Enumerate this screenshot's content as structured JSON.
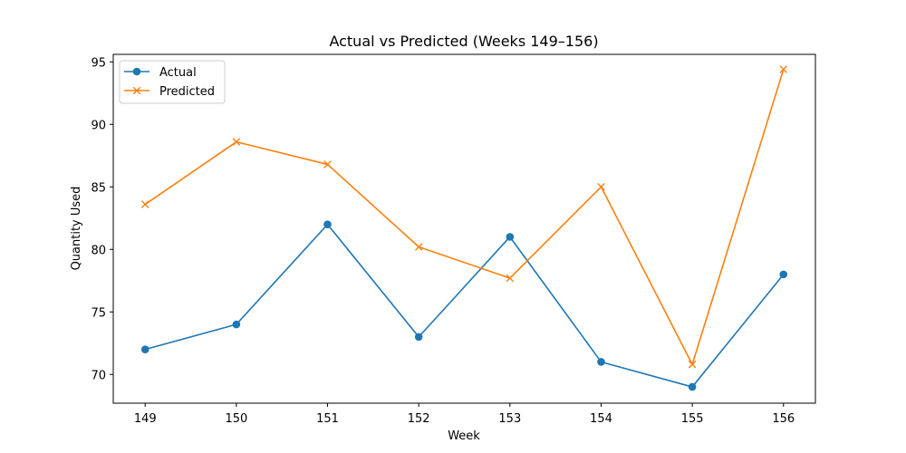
{
  "chart_data": {
    "type": "line",
    "title": "Actual vs Predicted (Weeks 149–156)",
    "xlabel": "Week",
    "ylabel": "Quantity Used",
    "x": [
      149,
      150,
      151,
      152,
      153,
      154,
      155,
      156
    ],
    "xlim": [
      148.65,
      156.35
    ],
    "ylim": [
      67.7,
      95.6
    ],
    "yticks": [
      70,
      75,
      80,
      85,
      90,
      95
    ],
    "grid": false,
    "legend_position": "top-left",
    "series": [
      {
        "name": "Actual",
        "color": "#1f77b4",
        "marker": "circle",
        "values": [
          72,
          74,
          82,
          73,
          81,
          71,
          69,
          78
        ]
      },
      {
        "name": "Predicted",
        "color": "#ff7f0e",
        "marker": "x",
        "values": [
          83.6,
          88.6,
          86.8,
          80.2,
          77.7,
          85.0,
          70.8,
          94.4
        ]
      }
    ]
  }
}
